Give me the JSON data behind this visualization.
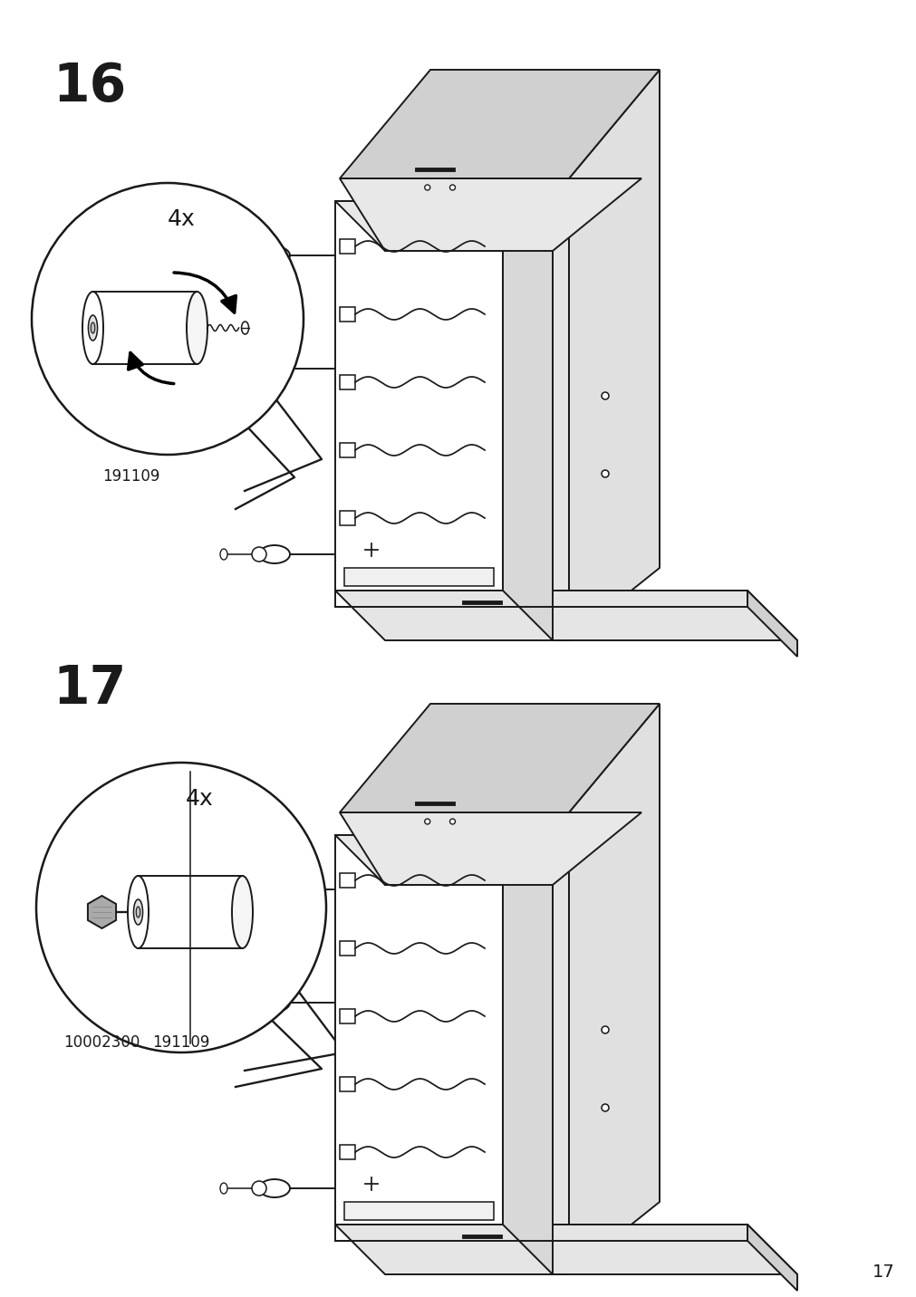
{
  "background_color": "#ffffff",
  "step16_number": "16",
  "step17_number": "17",
  "page_number": "17",
  "quantity_label": "4x",
  "part_id_16": "191109",
  "part_id_17a": "10002300",
  "part_id_17b": "191109",
  "line_color": "#1a1a1a",
  "line_width": 1.4,
  "step_num_fontsize": 42,
  "label_fontsize": 18,
  "part_id_fontsize": 12,
  "page_num_fontsize": 14
}
